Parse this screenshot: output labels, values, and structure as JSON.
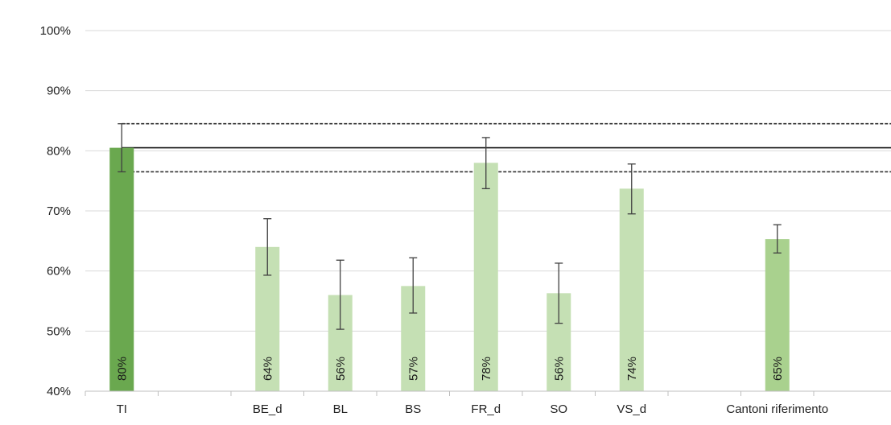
{
  "chart_data": {
    "type": "bar",
    "categories": [
      "TI",
      "",
      "BE_d",
      "BL",
      "BS",
      "FR_d",
      "SO",
      "VS_d",
      "",
      "Cantoni riferimento"
    ],
    "values": [
      80.5,
      null,
      64,
      56,
      57.5,
      78,
      56.3,
      73.7,
      null,
      65.3
    ],
    "data_labels": [
      "80%",
      "",
      "64%",
      "56%",
      "57%",
      "78%",
      "56%",
      "74%",
      "",
      "65%"
    ],
    "error_low": [
      76.5,
      null,
      59.3,
      50.3,
      53,
      73.7,
      51.3,
      69.5,
      null,
      63
    ],
    "error_high": [
      84.5,
      null,
      68.7,
      61.8,
      62.2,
      82.2,
      61.3,
      77.8,
      null,
      67.7
    ],
    "bar_colors": [
      "#6aa84f",
      null,
      "#c5e0b4",
      "#c5e0b4",
      "#c5e0b4",
      "#c5e0b4",
      "#c5e0b4",
      "#c5e0b4",
      null,
      "#a9d18e"
    ],
    "reference_line": 80.5,
    "reference_band": [
      76.5,
      84.5
    ],
    "ylim": [
      40,
      100
    ],
    "yticks": [
      "40%",
      "50%",
      "60%",
      "70%",
      "80%",
      "90%",
      "100%"
    ],
    "ytick_values": [
      40,
      50,
      60,
      70,
      80,
      90,
      100
    ],
    "grid": true,
    "title": "",
    "xlabel": "",
    "ylabel": ""
  }
}
